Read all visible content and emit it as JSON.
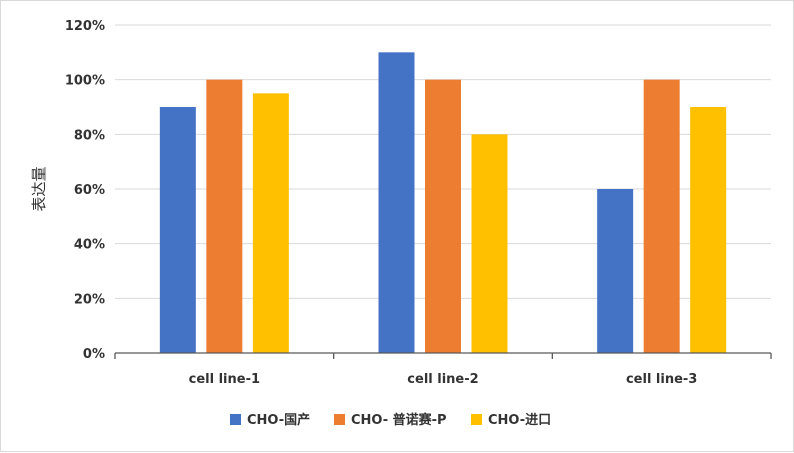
{
  "chart_data": {
    "type": "bar",
    "title": "",
    "xlabel": "",
    "ylabel": "表达量",
    "ylim": [
      0,
      1.2
    ],
    "yticks": [
      0,
      0.2,
      0.4,
      0.6,
      0.8,
      1.0,
      1.2
    ],
    "ytick_labels": [
      "0%",
      "20%",
      "40%",
      "60%",
      "80%",
      "100%",
      "120%"
    ],
    "categories": [
      "cell line-1",
      "cell line-2",
      "cell line-3"
    ],
    "series": [
      {
        "name": "CHO-国产",
        "color": "#4472c4",
        "values": [
          0.9,
          1.1,
          0.6
        ]
      },
      {
        "name": "CHO- 普诺赛-P",
        "color": "#ed7d31",
        "values": [
          1.0,
          1.0,
          1.0
        ]
      },
      {
        "name": "CHO-进口",
        "color": "#ffc000",
        "values": [
          0.95,
          0.8,
          0.9
        ]
      }
    ],
    "grid": true,
    "legend_position": "bottom"
  }
}
